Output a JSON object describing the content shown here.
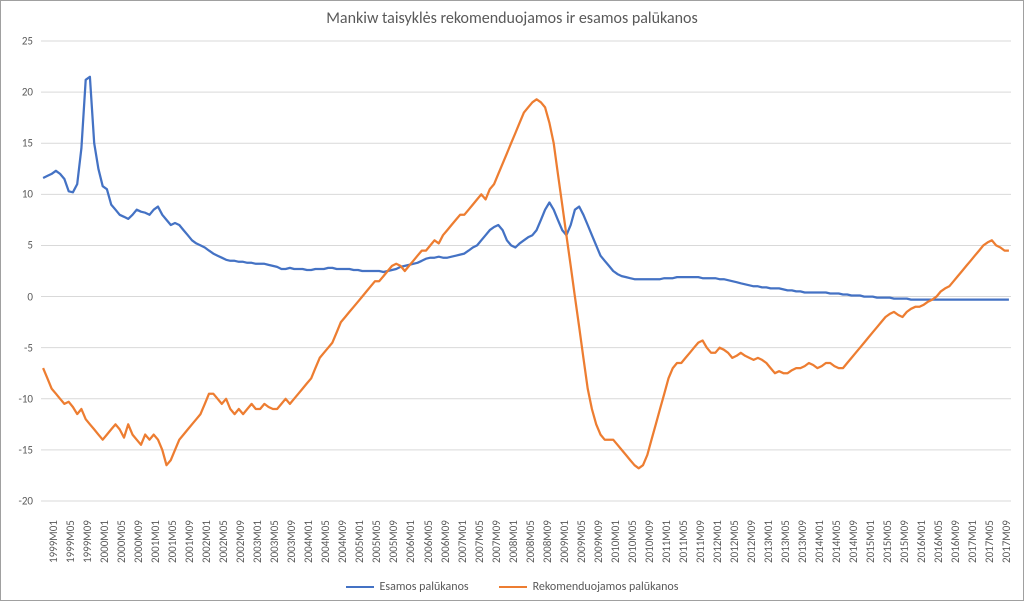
{
  "chart": {
    "type": "line",
    "title": "Mankiw taisyklės rekomenduojamos ir esamos palūkanos",
    "title_fontsize": 16,
    "label_fontsize": 11,
    "legend_fontsize": 12,
    "ylim": [
      -20,
      25
    ],
    "ytick_step": 5,
    "background_color": "#ffffff",
    "grid_color": "#d9d9d9",
    "axis_text_color": "#595959",
    "border_color": "#a0a0a0",
    "line_width": 2.25,
    "x_categories": [
      "1999M01",
      "1999M02",
      "1999M03",
      "1999M04",
      "1999M05",
      "1999M06",
      "1999M07",
      "1999M08",
      "1999M09",
      "1999M10",
      "1999M11",
      "1999M12",
      "2000M01",
      "2000M02",
      "2000M03",
      "2000M04",
      "2000M05",
      "2000M06",
      "2000M07",
      "2000M08",
      "2000M09",
      "2000M10",
      "2000M11",
      "2000M12",
      "2001M01",
      "2001M02",
      "2001M03",
      "2001M04",
      "2001M05",
      "2001M06",
      "2001M07",
      "2001M08",
      "2001M09",
      "2001M10",
      "2001M11",
      "2001M12",
      "2002M01",
      "2002M02",
      "2002M03",
      "2002M04",
      "2002M05",
      "2002M06",
      "2002M07",
      "2002M08",
      "2002M09",
      "2002M10",
      "2002M11",
      "2002M12",
      "2003M01",
      "2003M02",
      "2003M03",
      "2003M04",
      "2003M05",
      "2003M06",
      "2003M07",
      "2003M08",
      "2003M09",
      "2003M10",
      "2003M11",
      "2003M12",
      "2004M01",
      "2004M02",
      "2004M03",
      "2004M04",
      "2004M05",
      "2004M06",
      "2004M07",
      "2004M08",
      "2004M09",
      "2004M10",
      "2004M11",
      "2004M12",
      "2005M01",
      "2005M02",
      "2005M03",
      "2005M04",
      "2005M05",
      "2005M06",
      "2005M07",
      "2005M08",
      "2005M09",
      "2005M10",
      "2005M11",
      "2005M12",
      "2006M01",
      "2006M02",
      "2006M03",
      "2006M04",
      "2006M05",
      "2006M06",
      "2006M07",
      "2006M08",
      "2006M09",
      "2006M10",
      "2006M11",
      "2006M12",
      "2007M01",
      "2007M02",
      "2007M03",
      "2007M04",
      "2007M05",
      "2007M06",
      "2007M07",
      "2007M08",
      "2007M09",
      "2007M10",
      "2007M11",
      "2007M12",
      "2008M01",
      "2008M02",
      "2008M03",
      "2008M04",
      "2008M05",
      "2008M06",
      "2008M07",
      "2008M08",
      "2008M09",
      "2008M10",
      "2008M11",
      "2008M12",
      "2009M01",
      "2009M02",
      "2009M03",
      "2009M04",
      "2009M05",
      "2009M06",
      "2009M07",
      "2009M08",
      "2009M09",
      "2009M10",
      "2009M11",
      "2009M12",
      "2010M01",
      "2010M02",
      "2010M03",
      "2010M04",
      "2010M05",
      "2010M06",
      "2010M07",
      "2010M08",
      "2010M09",
      "2010M10",
      "2010M11",
      "2010M12",
      "2011M01",
      "2011M02",
      "2011M03",
      "2011M04",
      "2011M05",
      "2011M06",
      "2011M07",
      "2011M08",
      "2011M09",
      "2011M10",
      "2011M11",
      "2011M12",
      "2012M01",
      "2012M02",
      "2012M03",
      "2012M04",
      "2012M05",
      "2012M06",
      "2012M07",
      "2012M08",
      "2012M09",
      "2012M10",
      "2012M11",
      "2012M12",
      "2013M01",
      "2013M02",
      "2013M03",
      "2013M04",
      "2013M05",
      "2013M06",
      "2013M07",
      "2013M08",
      "2013M09",
      "2013M10",
      "2013M11",
      "2013M12",
      "2014M01",
      "2014M02",
      "2014M03",
      "2014M04",
      "2014M05",
      "2014M06",
      "2014M07",
      "2014M08",
      "2014M09",
      "2014M10",
      "2014M11",
      "2014M12",
      "2015M01",
      "2015M02",
      "2015M03",
      "2015M04",
      "2015M05",
      "2015M06",
      "2015M07",
      "2015M08",
      "2015M09",
      "2015M10",
      "2015M11",
      "2015M12",
      "2016M01",
      "2016M02",
      "2016M03",
      "2016M04",
      "2016M05",
      "2016M06",
      "2016M07",
      "2016M08",
      "2016M09",
      "2016M10",
      "2016M11",
      "2016M12",
      "2017M01",
      "2017M02",
      "2017M03",
      "2017M04",
      "2017M05",
      "2017M06",
      "2017M07",
      "2017M08",
      "2017M09",
      "2017M10",
      "2017M11",
      "2017M12"
    ],
    "x_tick_labels": [
      "1999M01",
      "1999M05",
      "1999M09",
      "2000M01",
      "2000M05",
      "2000M09",
      "2001M01",
      "2001M05",
      "2001M09",
      "2002M01",
      "2002M05",
      "2002M09",
      "2003M01",
      "2003M05",
      "2003M09",
      "2004M01",
      "2004M05",
      "2004M09",
      "2005M01",
      "2005M05",
      "2005M09",
      "2006M01",
      "2006M05",
      "2006M09",
      "2007M01",
      "2007M05",
      "2007M09",
      "2008M01",
      "2008M05",
      "2008M09",
      "2009M01",
      "2009M05",
      "2009M09",
      "2010M01",
      "2010M05",
      "2010M09",
      "2011M01",
      "2011M05",
      "2011M09",
      "2012M01",
      "2012M05",
      "2012M09",
      "2013M01",
      "2013M05",
      "2013M09",
      "2014M01",
      "2014M05",
      "2014M09",
      "2015M01",
      "2015M05",
      "2015M09",
      "2016M01",
      "2016M05",
      "2016M09",
      "2017M01",
      "2017M05",
      "2017M09"
    ],
    "series": [
      {
        "name": "Esamos palūkanos",
        "color": "#4472c4",
        "values": [
          11.6,
          11.8,
          12.0,
          12.3,
          12.0,
          11.5,
          10.3,
          10.2,
          11.0,
          14.5,
          21.2,
          21.5,
          15.0,
          12.5,
          10.8,
          10.5,
          9.0,
          8.5,
          8.0,
          7.8,
          7.6,
          8.0,
          8.5,
          8.3,
          8.2,
          8.0,
          8.5,
          8.8,
          8.0,
          7.5,
          7.0,
          7.2,
          7.0,
          6.5,
          6.0,
          5.5,
          5.2,
          5.0,
          4.8,
          4.5,
          4.2,
          4.0,
          3.8,
          3.6,
          3.5,
          3.5,
          3.4,
          3.4,
          3.3,
          3.3,
          3.2,
          3.2,
          3.2,
          3.1,
          3.0,
          2.9,
          2.7,
          2.7,
          2.8,
          2.7,
          2.7,
          2.7,
          2.6,
          2.6,
          2.7,
          2.7,
          2.7,
          2.8,
          2.8,
          2.7,
          2.7,
          2.7,
          2.7,
          2.6,
          2.6,
          2.5,
          2.5,
          2.5,
          2.5,
          2.5,
          2.4,
          2.5,
          2.6,
          2.7,
          2.9,
          3.0,
          3.1,
          3.2,
          3.3,
          3.5,
          3.7,
          3.8,
          3.8,
          3.9,
          3.8,
          3.8,
          3.9,
          4.0,
          4.1,
          4.2,
          4.5,
          4.8,
          5.0,
          5.5,
          6.0,
          6.5,
          6.8,
          7.0,
          6.5,
          5.5,
          5.0,
          4.8,
          5.2,
          5.5,
          5.8,
          6.0,
          6.5,
          7.5,
          8.5,
          9.2,
          8.5,
          7.5,
          6.5,
          6.0,
          7.0,
          8.5,
          8.8,
          8.0,
          7.0,
          6.0,
          5.0,
          4.0,
          3.5,
          3.0,
          2.5,
          2.2,
          2.0,
          1.9,
          1.8,
          1.7,
          1.7,
          1.7,
          1.7,
          1.7,
          1.7,
          1.7,
          1.8,
          1.8,
          1.8,
          1.9,
          1.9,
          1.9,
          1.9,
          1.9,
          1.9,
          1.8,
          1.8,
          1.8,
          1.8,
          1.7,
          1.7,
          1.6,
          1.5,
          1.4,
          1.3,
          1.2,
          1.1,
          1.0,
          1.0,
          0.9,
          0.9,
          0.8,
          0.8,
          0.8,
          0.7,
          0.6,
          0.6,
          0.5,
          0.5,
          0.4,
          0.4,
          0.4,
          0.4,
          0.4,
          0.4,
          0.3,
          0.3,
          0.3,
          0.2,
          0.2,
          0.1,
          0.1,
          0.1,
          0.0,
          0.0,
          0.0,
          -0.1,
          -0.1,
          -0.1,
          -0.1,
          -0.2,
          -0.2,
          -0.2,
          -0.2,
          -0.3,
          -0.3,
          -0.3,
          -0.3,
          -0.3,
          -0.3,
          -0.3,
          -0.3,
          -0.3,
          -0.3,
          -0.3,
          -0.3,
          -0.3,
          -0.3,
          -0.3,
          -0.3,
          -0.3,
          -0.3,
          -0.3,
          -0.3,
          -0.3,
          -0.3,
          -0.3,
          -0.3
        ]
      },
      {
        "name": "Rekomenduojamos palūkanos",
        "color": "#ed7d31",
        "values": [
          -7.0,
          -8.0,
          -9.0,
          -9.5,
          -10.0,
          -10.5,
          -10.3,
          -10.8,
          -11.5,
          -11.0,
          -12.0,
          -12.5,
          -13.0,
          -13.5,
          -14.0,
          -13.5,
          -13.0,
          -12.5,
          -13.0,
          -13.8,
          -12.5,
          -13.5,
          -14.0,
          -14.5,
          -13.5,
          -14.0,
          -13.5,
          -14.0,
          -15.0,
          -16.5,
          -16.0,
          -15.0,
          -14.0,
          -13.5,
          -13.0,
          -12.5,
          -12.0,
          -11.5,
          -10.5,
          -9.5,
          -9.5,
          -10.0,
          -10.5,
          -10.0,
          -11.0,
          -11.5,
          -11.0,
          -11.5,
          -11.0,
          -10.5,
          -11.0,
          -11.0,
          -10.5,
          -10.8,
          -11.0,
          -11.0,
          -10.5,
          -10.0,
          -10.5,
          -10.0,
          -9.5,
          -9.0,
          -8.5,
          -8.0,
          -7.0,
          -6.0,
          -5.5,
          -5.0,
          -4.5,
          -3.5,
          -2.5,
          -2.0,
          -1.5,
          -1.0,
          -0.5,
          0.0,
          0.5,
          1.0,
          1.5,
          1.5,
          2.0,
          2.5,
          3.0,
          3.2,
          3.0,
          2.5,
          3.0,
          3.5,
          4.0,
          4.5,
          4.5,
          5.0,
          5.5,
          5.2,
          6.0,
          6.5,
          7.0,
          7.5,
          8.0,
          8.0,
          8.5,
          9.0,
          9.5,
          10.0,
          9.5,
          10.5,
          11.0,
          12.0,
          13.0,
          14.0,
          15.0,
          16.0,
          17.0,
          18.0,
          18.5,
          19.0,
          19.3,
          19.0,
          18.5,
          17.0,
          15.0,
          12.0,
          9.0,
          6.0,
          3.0,
          0.0,
          -3.0,
          -6.0,
          -9.0,
          -11.0,
          -12.5,
          -13.5,
          -14.0,
          -14.0,
          -14.0,
          -14.5,
          -15.0,
          -15.5,
          -16.0,
          -16.5,
          -16.8,
          -16.5,
          -15.5,
          -14.0,
          -12.5,
          -11.0,
          -9.5,
          -8.0,
          -7.0,
          -6.5,
          -6.5,
          -6.0,
          -5.5,
          -5.0,
          -4.5,
          -4.3,
          -5.0,
          -5.5,
          -5.5,
          -5.0,
          -5.2,
          -5.5,
          -6.0,
          -5.8,
          -5.5,
          -5.8,
          -6.0,
          -6.2,
          -6.0,
          -6.2,
          -6.5,
          -7.0,
          -7.5,
          -7.3,
          -7.5,
          -7.5,
          -7.2,
          -7.0,
          -7.0,
          -6.8,
          -6.5,
          -6.7,
          -7.0,
          -6.8,
          -6.5,
          -6.5,
          -6.8,
          -7.0,
          -7.0,
          -6.5,
          -6.0,
          -5.5,
          -5.0,
          -4.5,
          -4.0,
          -3.5,
          -3.0,
          -2.5,
          -2.0,
          -1.7,
          -1.5,
          -1.8,
          -2.0,
          -1.5,
          -1.2,
          -1.0,
          -1.0,
          -0.8,
          -0.5,
          -0.3,
          0.0,
          0.5,
          0.8,
          1.0,
          1.5,
          2.0,
          2.5,
          3.0,
          3.5,
          4.0,
          4.5,
          5.0,
          5.3,
          5.5,
          5.0,
          4.8,
          4.5,
          4.5
        ]
      }
    ]
  }
}
